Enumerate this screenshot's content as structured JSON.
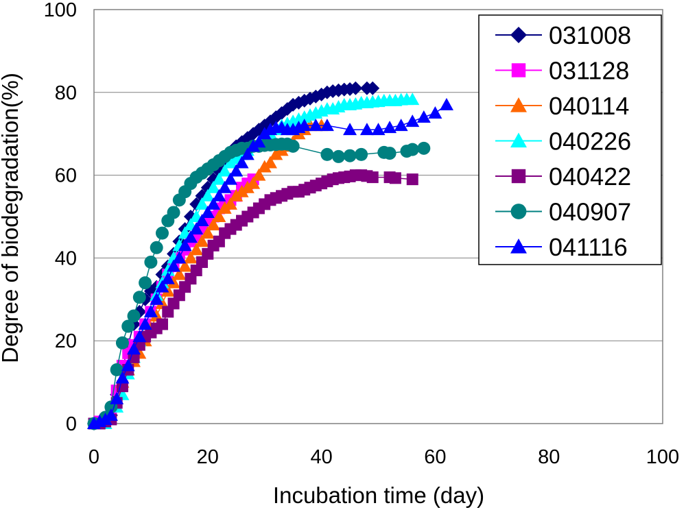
{
  "chart_data": {
    "type": "line",
    "title": "",
    "xlabel": "Incubation time (day)",
    "ylabel": "Degree of biodegradation(%)",
    "xlim": [
      0,
      100
    ],
    "ylim": [
      0,
      100
    ],
    "x_ticks": [
      "0",
      "20",
      "40",
      "60",
      "80",
      "100"
    ],
    "y_ticks": [
      "0",
      "20",
      "40",
      "60",
      "80",
      "100"
    ],
    "grid": "horizontal",
    "legend_position": "top-right",
    "series": [
      {
        "name": "031008",
        "color": "#000080",
        "marker": "diamond",
        "points": [
          [
            0,
            0
          ],
          [
            1,
            0.5
          ],
          [
            2,
            1
          ],
          [
            3,
            2
          ],
          [
            4,
            7
          ],
          [
            5,
            13
          ],
          [
            6,
            19
          ],
          [
            7,
            24
          ],
          [
            8,
            27
          ],
          [
            9,
            30
          ],
          [
            10,
            32
          ],
          [
            11,
            33
          ],
          [
            12,
            36
          ],
          [
            13,
            38
          ],
          [
            14,
            41
          ],
          [
            15,
            44
          ],
          [
            16,
            47
          ],
          [
            17,
            50
          ],
          [
            18,
            53
          ],
          [
            19,
            55
          ],
          [
            20,
            57
          ],
          [
            21,
            59
          ],
          [
            22,
            61
          ],
          [
            23,
            63
          ],
          [
            24,
            65
          ],
          [
            25,
            67
          ],
          [
            26,
            68
          ],
          [
            27,
            69
          ],
          [
            28,
            70
          ],
          [
            29,
            71
          ],
          [
            30,
            72
          ],
          [
            31,
            73
          ],
          [
            32,
            74
          ],
          [
            33,
            75
          ],
          [
            34,
            76
          ],
          [
            35,
            77
          ],
          [
            36,
            77.5
          ],
          [
            37,
            78
          ],
          [
            38,
            78.5
          ],
          [
            39,
            79
          ],
          [
            40,
            79.5
          ],
          [
            41,
            80
          ],
          [
            42,
            80.3
          ],
          [
            43,
            80.5
          ],
          [
            44,
            80.7
          ],
          [
            45,
            80.8
          ],
          [
            46,
            81
          ],
          [
            48,
            81
          ],
          [
            49,
            81
          ]
        ]
      },
      {
        "name": "031128",
        "color": "#FF00FF",
        "marker": "square",
        "points": [
          [
            0,
            0
          ],
          [
            1,
            0.5
          ],
          [
            2,
            1
          ],
          [
            3,
            3
          ],
          [
            4,
            8
          ],
          [
            5,
            14
          ],
          [
            6,
            17
          ],
          [
            7,
            19
          ],
          [
            8,
            21
          ],
          [
            9,
            24
          ],
          [
            10,
            27
          ],
          [
            11,
            30
          ],
          [
            12,
            33
          ],
          [
            13,
            36
          ],
          [
            14,
            38
          ],
          [
            15,
            40
          ],
          [
            16,
            42
          ],
          [
            17,
            44
          ],
          [
            18,
            45
          ],
          [
            19,
            47
          ],
          [
            20,
            49
          ],
          [
            21,
            50
          ],
          [
            22,
            52
          ],
          [
            23,
            53
          ],
          [
            24,
            54
          ],
          [
            25,
            55
          ],
          [
            26,
            57
          ],
          [
            27,
            58
          ],
          [
            28,
            59
          ]
        ]
      },
      {
        "name": "040114",
        "color": "#FF6600",
        "marker": "triangle",
        "points": [
          [
            0,
            0
          ],
          [
            1,
            0
          ],
          [
            2,
            0
          ],
          [
            3,
            2
          ],
          [
            4,
            6
          ],
          [
            5,
            10
          ],
          [
            6,
            13
          ],
          [
            7,
            15
          ],
          [
            8,
            17
          ],
          [
            9,
            20
          ],
          [
            10,
            23
          ],
          [
            11,
            26
          ],
          [
            12,
            29
          ],
          [
            13,
            32
          ],
          [
            14,
            34
          ],
          [
            15,
            36
          ],
          [
            16,
            38
          ],
          [
            17,
            40
          ],
          [
            18,
            42
          ],
          [
            19,
            44
          ],
          [
            20,
            46
          ],
          [
            21,
            48
          ],
          [
            22,
            50
          ],
          [
            23,
            52
          ],
          [
            24,
            53
          ],
          [
            25,
            55
          ],
          [
            26,
            56
          ],
          [
            27,
            57
          ],
          [
            28,
            58
          ],
          [
            29,
            60
          ],
          [
            30,
            62
          ],
          [
            31,
            63
          ],
          [
            32,
            65
          ],
          [
            33,
            66
          ],
          [
            34,
            67
          ],
          [
            35,
            68
          ],
          [
            36,
            70
          ],
          [
            37,
            71
          ],
          [
            38,
            72
          ],
          [
            39,
            72
          ],
          [
            40,
            72
          ]
        ]
      },
      {
        "name": "040226",
        "color": "#00FFFF",
        "marker": "triangle",
        "points": [
          [
            0,
            0
          ],
          [
            1,
            0
          ],
          [
            2,
            0
          ],
          [
            3,
            2
          ],
          [
            4,
            4
          ],
          [
            5,
            7
          ],
          [
            6,
            12
          ],
          [
            7,
            16
          ],
          [
            8,
            20
          ],
          [
            9,
            24
          ],
          [
            10,
            27
          ],
          [
            11,
            31
          ],
          [
            12,
            34
          ],
          [
            13,
            37
          ],
          [
            14,
            40
          ],
          [
            15,
            43
          ],
          [
            16,
            46
          ],
          [
            17,
            48
          ],
          [
            18,
            50
          ],
          [
            19,
            53
          ],
          [
            20,
            55
          ],
          [
            21,
            57
          ],
          [
            22,
            59
          ],
          [
            23,
            61
          ],
          [
            24,
            63
          ],
          [
            25,
            64
          ],
          [
            26,
            65
          ],
          [
            27,
            66
          ],
          [
            28,
            67
          ],
          [
            29,
            68
          ],
          [
            30,
            69
          ],
          [
            31,
            70
          ],
          [
            32,
            71
          ],
          [
            33,
            72
          ],
          [
            34,
            72.5
          ],
          [
            35,
            73
          ],
          [
            36,
            73.5
          ],
          [
            37,
            74
          ],
          [
            38,
            74.5
          ],
          [
            39,
            75
          ],
          [
            40,
            75.5
          ],
          [
            41,
            76
          ],
          [
            42,
            76
          ],
          [
            43,
            76.5
          ],
          [
            44,
            77
          ],
          [
            45,
            77
          ],
          [
            46,
            77.2
          ],
          [
            47,
            77.5
          ],
          [
            48,
            77.5
          ],
          [
            49,
            77.7
          ],
          [
            50,
            77.8
          ],
          [
            51,
            78
          ],
          [
            52,
            78
          ],
          [
            53,
            78
          ],
          [
            54,
            78.2
          ],
          [
            55,
            78.3
          ],
          [
            56,
            78.3
          ]
        ]
      },
      {
        "name": "040422",
        "color": "#800080",
        "marker": "square",
        "points": [
          [
            0,
            0
          ],
          [
            1,
            0
          ],
          [
            2,
            0.5
          ],
          [
            3,
            1
          ],
          [
            4,
            5
          ],
          [
            5,
            9
          ],
          [
            6,
            13
          ],
          [
            7,
            16
          ],
          [
            8,
            19
          ],
          [
            9,
            21
          ],
          [
            10,
            22
          ],
          [
            11,
            23
          ],
          [
            12,
            24
          ],
          [
            13,
            27
          ],
          [
            14,
            29
          ],
          [
            15,
            31
          ],
          [
            16,
            33
          ],
          [
            17,
            35
          ],
          [
            18,
            37
          ],
          [
            19,
            39
          ],
          [
            20,
            41
          ],
          [
            21,
            43
          ],
          [
            22,
            44
          ],
          [
            23,
            46
          ],
          [
            24,
            47
          ],
          [
            25,
            48
          ],
          [
            26,
            49
          ],
          [
            27,
            50
          ],
          [
            28,
            51
          ],
          [
            29,
            52
          ],
          [
            30,
            53
          ],
          [
            31,
            54
          ],
          [
            32,
            54.5
          ],
          [
            33,
            55
          ],
          [
            34,
            55.5
          ],
          [
            35,
            56
          ],
          [
            36,
            56
          ],
          [
            37,
            56.5
          ],
          [
            38,
            57
          ],
          [
            39,
            57.5
          ],
          [
            40,
            58
          ],
          [
            41,
            58.5
          ],
          [
            42,
            59
          ],
          [
            43,
            59.3
          ],
          [
            44,
            59.5
          ],
          [
            45,
            59.7
          ],
          [
            46,
            60
          ],
          [
            47,
            60
          ],
          [
            48,
            59.8
          ],
          [
            49,
            59.5
          ],
          [
            52,
            59.5
          ],
          [
            53,
            59.3
          ],
          [
            56,
            59
          ]
        ]
      },
      {
        "name": "040907",
        "color": "#008080",
        "marker": "circle",
        "points": [
          [
            0,
            0
          ],
          [
            2,
            1.5
          ],
          [
            3,
            4
          ],
          [
            4,
            13
          ],
          [
            5,
            19.5
          ],
          [
            6,
            23.5
          ],
          [
            7,
            26
          ],
          [
            8,
            30.5
          ],
          [
            9,
            34
          ],
          [
            10,
            39
          ],
          [
            11,
            42.5
          ],
          [
            12,
            46
          ],
          [
            13,
            49
          ],
          [
            14,
            51
          ],
          [
            15,
            54
          ],
          [
            16,
            56
          ],
          [
            17,
            58
          ],
          [
            18,
            59.5
          ],
          [
            19,
            60.5
          ],
          [
            20,
            61.5
          ],
          [
            21,
            62.5
          ],
          [
            22,
            63.5
          ],
          [
            23,
            64.5
          ],
          [
            24,
            65.5
          ],
          [
            25,
            66
          ],
          [
            26,
            66.5
          ],
          [
            27,
            66.5
          ],
          [
            28,
            67
          ],
          [
            29,
            67
          ],
          [
            30,
            67.2
          ],
          [
            31,
            67.3
          ],
          [
            32,
            67.4
          ],
          [
            33,
            67.5
          ],
          [
            34,
            67.5
          ],
          [
            35,
            67
          ],
          [
            41,
            65
          ],
          [
            43,
            64.5
          ],
          [
            45,
            64.7
          ],
          [
            47,
            65
          ],
          [
            51,
            65.5
          ],
          [
            52,
            65.3
          ],
          [
            55,
            65.8
          ],
          [
            56,
            66.2
          ],
          [
            58,
            66.5
          ]
        ]
      },
      {
        "name": "041116",
        "color": "#0000FF",
        "marker": "triangle",
        "points": [
          [
            0,
            0
          ],
          [
            1,
            0.5
          ],
          [
            2,
            1
          ],
          [
            3,
            2
          ],
          [
            4,
            6
          ],
          [
            5,
            11
          ],
          [
            6,
            14
          ],
          [
            7,
            18
          ],
          [
            8,
            21
          ],
          [
            9,
            24
          ],
          [
            10,
            27
          ],
          [
            11,
            30
          ],
          [
            12,
            33
          ],
          [
            13,
            35
          ],
          [
            14,
            38
          ],
          [
            15,
            40
          ],
          [
            16,
            43
          ],
          [
            17,
            45
          ],
          [
            18,
            47
          ],
          [
            19,
            49
          ],
          [
            20,
            51
          ],
          [
            21,
            53
          ],
          [
            22,
            55
          ],
          [
            23,
            57
          ],
          [
            24,
            59
          ],
          [
            25,
            61
          ],
          [
            26,
            63
          ],
          [
            27,
            65
          ],
          [
            28,
            67
          ],
          [
            29,
            68
          ],
          [
            30,
            70
          ],
          [
            31,
            71
          ],
          [
            32,
            71.5
          ],
          [
            33,
            71.5
          ],
          [
            34,
            71
          ],
          [
            35,
            71
          ],
          [
            36,
            71.5
          ],
          [
            37,
            72
          ],
          [
            39,
            72
          ],
          [
            41,
            72
          ],
          [
            45,
            71
          ],
          [
            48,
            71
          ],
          [
            50,
            71
          ],
          [
            52,
            71.5
          ],
          [
            54,
            72
          ],
          [
            56,
            73
          ],
          [
            58,
            74
          ],
          [
            60,
            75
          ],
          [
            62,
            77
          ]
        ]
      }
    ]
  }
}
